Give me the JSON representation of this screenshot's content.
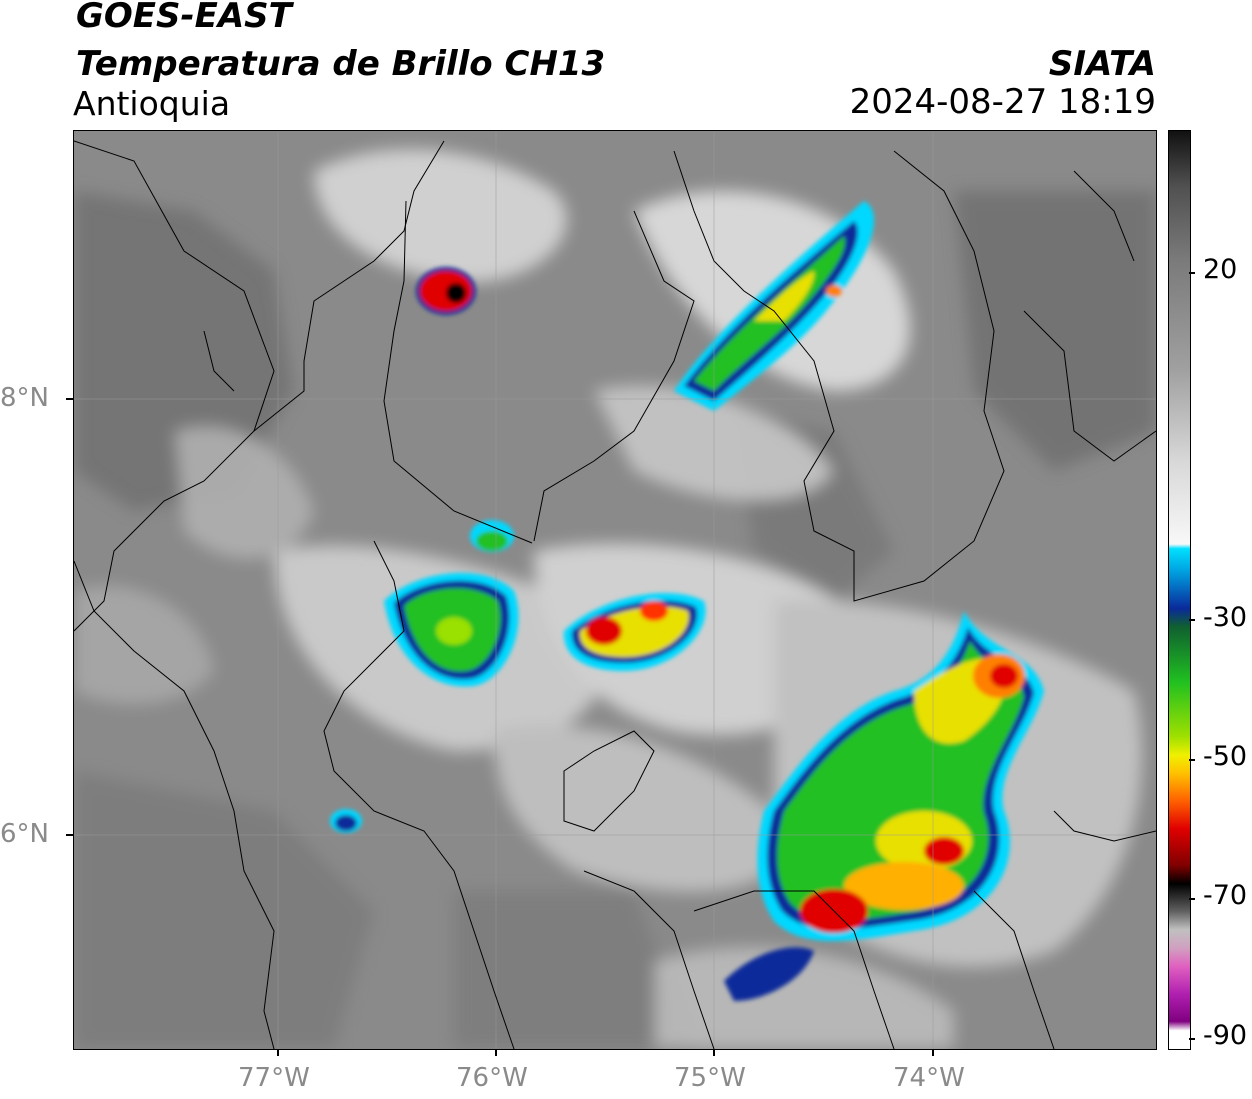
{
  "header": {
    "satellite": "GOES-EAST",
    "product": "Temperatura de Brillo CH13",
    "region": "Antioquia",
    "agency": "SIATA",
    "datetime": "2024-08-27 18:19"
  },
  "map": {
    "lat_labels": [
      "8°N",
      "6°N"
    ],
    "lon_labels": [
      "77°W",
      "76°W",
      "75°W",
      "74°W"
    ],
    "background_color": "#8a8a8a",
    "gridlines": true
  },
  "colorbar": {
    "labels": [
      "20",
      "-30",
      "-50",
      "-70",
      "-90"
    ],
    "colors": {
      "warm": "#8a8a8a",
      "cloud": "#f0f0f0",
      "cyan": "#00d8ff",
      "blue": "#0a2a9a",
      "green": "#20c020",
      "yellow": "#e8e000",
      "orange": "#ff8000",
      "red": "#e00000",
      "black": "#000000",
      "magenta": "#c000c0"
    }
  }
}
